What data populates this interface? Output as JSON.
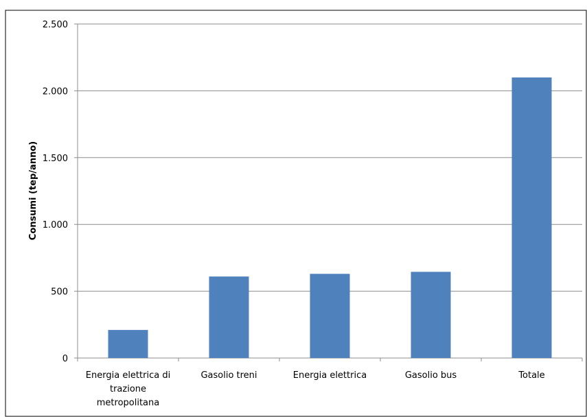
{
  "chart_data": {
    "type": "bar",
    "y_label": "Consumi (tep/anno)",
    "categories": [
      "Energia elettrica di trazione metropolitana",
      "Gasolio treni",
      "Energia elettrica",
      "Gasolio bus",
      "Totale"
    ],
    "values": [
      210,
      610,
      630,
      645,
      2100
    ],
    "color": "#4f81bd",
    "ylim": [
      0,
      2500
    ],
    "yticks": [
      0,
      500,
      {
        "value": 1000,
        "label": "1.000"
      },
      {
        "value": 1500,
        "label": "1.500"
      },
      {
        "value": 2000,
        "label": "2.000"
      },
      {
        "value": 2500,
        "label": "2.500"
      }
    ],
    "grid": true
  }
}
